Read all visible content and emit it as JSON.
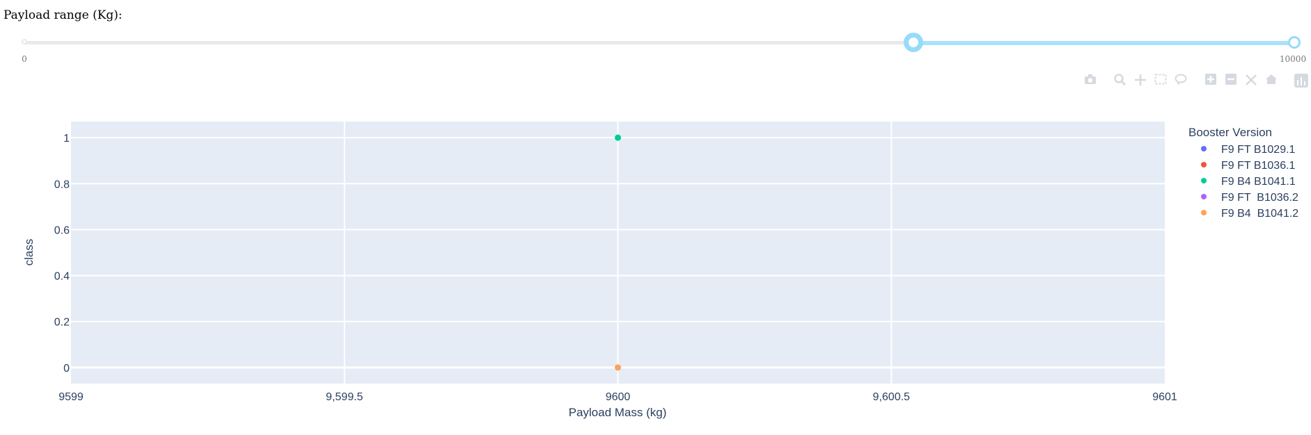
{
  "slider": {
    "label": "Payload range (Kg):",
    "min": 0,
    "max": 10000,
    "value_low": 7000,
    "value_high": 10000,
    "marks": [
      "0",
      "10000"
    ],
    "accent_color": "#96dbfa"
  },
  "modebar": {
    "icons": [
      "camera-icon",
      "zoom-icon",
      "pan-icon",
      "box-select-icon",
      "lasso-select-icon",
      "zoom-in-icon",
      "zoom-out-icon",
      "autoscale-icon",
      "reset-axes-icon",
      "plotly-logo-icon"
    ]
  },
  "chart_data": {
    "type": "scatter",
    "xlabel": "Payload Mass (kg)",
    "ylabel": "class",
    "xlim": [
      9599,
      9601
    ],
    "ylim": [
      -0.07,
      1.07
    ],
    "xticks": [
      9599,
      9599.5,
      9600,
      9600.5,
      9601
    ],
    "xtick_labels": [
      "9599",
      "9,599.5",
      "9600",
      "9,600.5",
      "9601"
    ],
    "yticks": [
      0,
      0.2,
      0.4,
      0.6,
      0.8,
      1
    ],
    "ytick_labels": [
      "0",
      "0.2",
      "0.4",
      "0.6",
      "0.8",
      "1"
    ],
    "grid": true,
    "legend_title": "Booster Version",
    "legend_position": "right",
    "series": [
      {
        "name": "F9 FT B1029.1",
        "color": "#636efa",
        "points": []
      },
      {
        "name": "F9 FT B1036.1",
        "color": "#ef553b",
        "points": []
      },
      {
        "name": "F9 B4 B1041.1",
        "color": "#00cc96",
        "points": [
          {
            "x": 9600,
            "y": 1
          }
        ]
      },
      {
        "name": "F9 FT  B1036.2",
        "color": "#ab63fa",
        "points": []
      },
      {
        "name": "F9 B4  B1041.2",
        "color": "#ffa15a",
        "points": [
          {
            "x": 9600,
            "y": 0
          }
        ]
      }
    ],
    "plot_bg": "#e5ecf6"
  }
}
